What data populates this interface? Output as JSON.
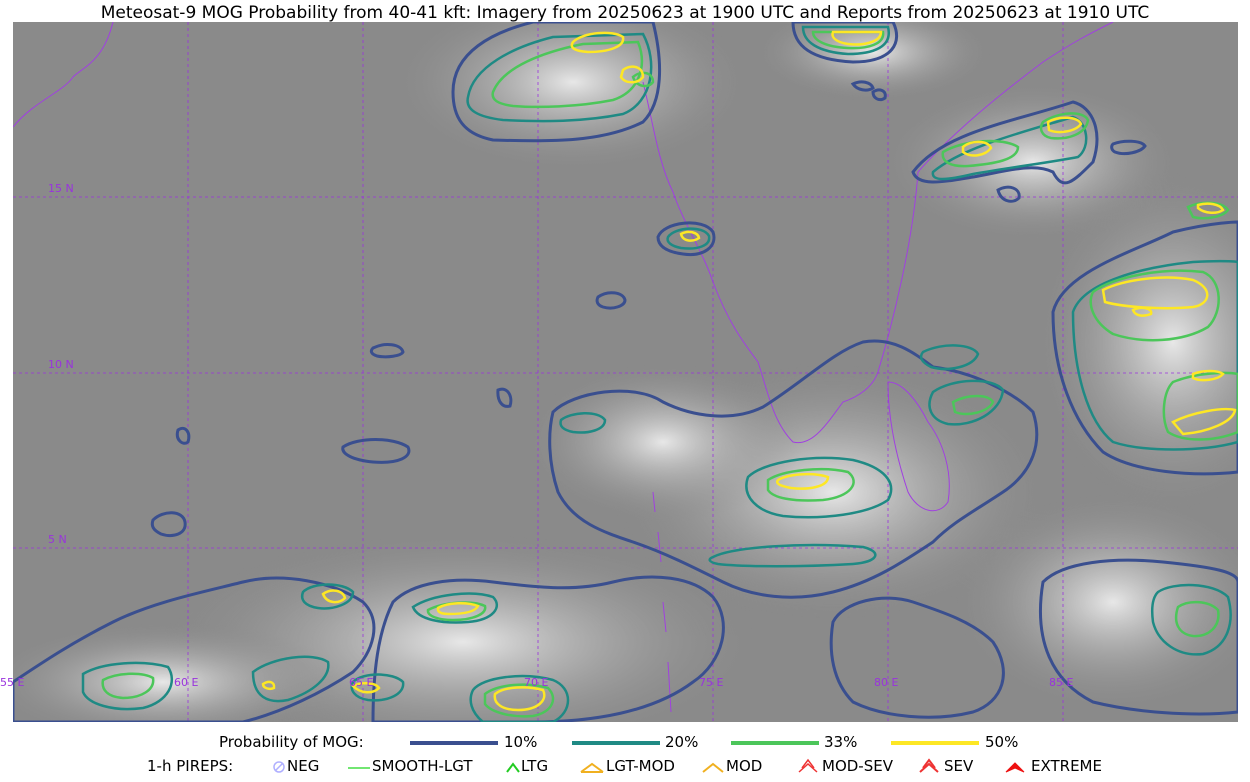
{
  "title": "Meteosat-9 MOG Probability from 40-41 kft: Imagery from 20250623 at 1900 UTC and Reports from 20250623 at 1910 UTC",
  "map": {
    "lat_labels": [
      "15 N",
      "10 N",
      "5 N"
    ],
    "lon_labels": [
      "55 E",
      "60 E",
      "65 E",
      "70 E",
      "75 E",
      "80 E",
      "85 E"
    ],
    "grid_color": "#9933dd",
    "coast_color": "#a040e0",
    "background_color": "#8a8a8a"
  },
  "legend": {
    "probability_label": "Probability of MOG:",
    "levels": [
      {
        "label": "10%",
        "color": "#3a4f8f"
      },
      {
        "label": "20%",
        "color": "#1f8a84"
      },
      {
        "label": "33%",
        "color": "#4cc65a"
      },
      {
        "label": "50%",
        "color": "#fde725"
      }
    ],
    "pireps_label": "1-h PIREPS:",
    "pireps": [
      {
        "label": "NEG",
        "icon": "neg-circle-icon",
        "color": "#b0b0ff"
      },
      {
        "label": "SMOOTH-LGT",
        "icon": "line-icon",
        "color": "#44dd44"
      },
      {
        "label": "LTG",
        "icon": "chevron-icon",
        "color": "#22cc22"
      },
      {
        "label": "LGT-MOD",
        "icon": "chevron-bar-icon",
        "color": "#f0b020"
      },
      {
        "label": "MOD",
        "icon": "chevron-icon",
        "color": "#f0b020"
      },
      {
        "label": "MOD-SEV",
        "icon": "double-chevron-icon",
        "color": "#ee3333"
      },
      {
        "label": "SEV",
        "icon": "double-chevron-icon",
        "color": "#ee3333"
      },
      {
        "label": "EXTREME",
        "icon": "filled-chevron-icon",
        "color": "#ee1111"
      }
    ]
  }
}
